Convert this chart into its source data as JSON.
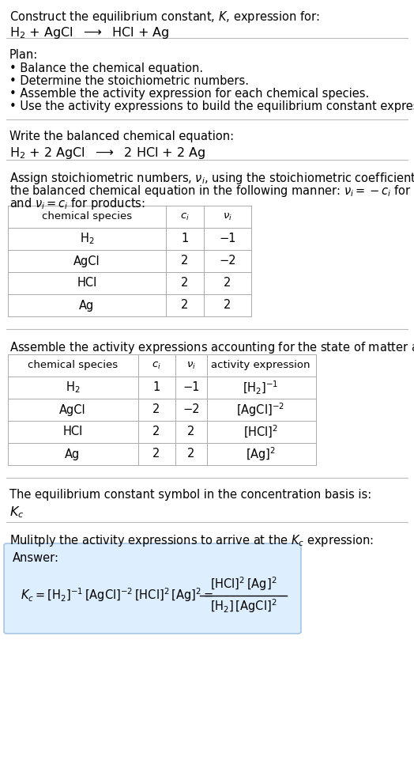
{
  "bg_color": "#ffffff",
  "text_color": "#000000",
  "title_line1": "Construct the equilibrium constant, $K$, expression for:",
  "title_line2": "H$_2$ + AgCl  $\\longrightarrow$  HCl + Ag",
  "plan_header": "Plan:",
  "plan_bullets": [
    "• Balance the chemical equation.",
    "• Determine the stoichiometric numbers.",
    "• Assemble the activity expression for each chemical species.",
    "• Use the activity expressions to build the equilibrium constant expression."
  ],
  "balanced_header": "Write the balanced chemical equation:",
  "balanced_eq": "H$_2$ + 2 AgCl  $\\longrightarrow$  2 HCl + 2 Ag",
  "stoich_intro1": "Assign stoichiometric numbers, $\\nu_i$, using the stoichiometric coefficients, $c_i$, from",
  "stoich_intro2": "the balanced chemical equation in the following manner: $\\nu_i = -c_i$ for reactants",
  "stoich_intro3": "and $\\nu_i = c_i$ for products:",
  "table1_headers": [
    "chemical species",
    "$c_i$",
    "$\\nu_i$"
  ],
  "table1_rows": [
    [
      "H$_2$",
      "1",
      "−1"
    ],
    [
      "AgCl",
      "2",
      "−2"
    ],
    [
      "HCl",
      "2",
      "2"
    ],
    [
      "Ag",
      "2",
      "2"
    ]
  ],
  "activity_intro": "Assemble the activity expressions accounting for the state of matter and $\\nu_i$:",
  "table2_headers": [
    "chemical species",
    "$c_i$",
    "$\\nu_i$",
    "activity expression"
  ],
  "table2_rows": [
    [
      "H$_2$",
      "1",
      "−1",
      "[H$_2$]$^{-1}$"
    ],
    [
      "AgCl",
      "2",
      "−2",
      "[AgCl]$^{-2}$"
    ],
    [
      "HCl",
      "2",
      "2",
      "[HCl]$^2$"
    ],
    [
      "Ag",
      "2",
      "2",
      "[Ag]$^2$"
    ]
  ],
  "kc_text": "The equilibrium constant symbol in the concentration basis is:",
  "kc_symbol": "$K_c$",
  "multiply_text": "Mulitply the activity expressions to arrive at the $K_c$ expression:",
  "answer_box_color": "#ddeeff",
  "answer_box_border": "#99bbdd",
  "answer_label": "Answer:",
  "font_size": 10.5,
  "font_size_small": 9.5
}
